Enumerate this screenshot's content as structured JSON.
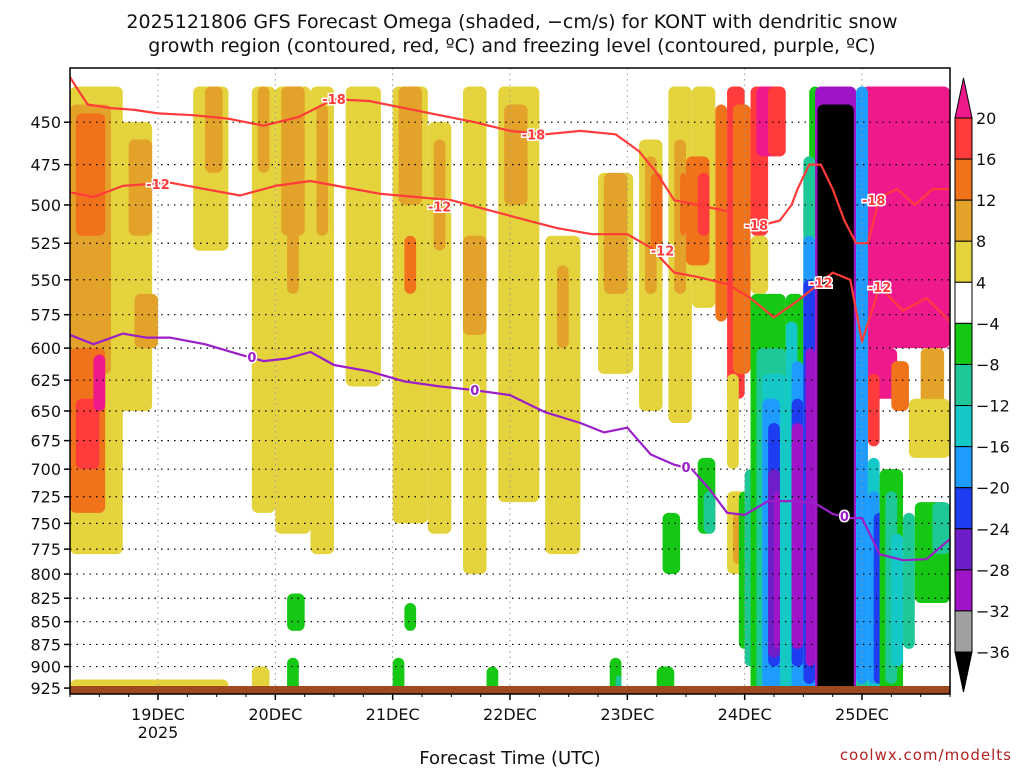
{
  "chart_data": {
    "type": "heatmap",
    "title_line1": "2025121806 GFS Forecast Omega (shaded, −cm/s) for KONT with dendritic snow",
    "title_line2": "growth region (contoured, red, ºC) and freezing level (contoured, purple, ºC)",
    "xlabel": "Forecast Time (UTC)",
    "ylabel": "",
    "credit": "coolwx.com/modelts",
    "x_ticks": [
      "19DEC",
      "20DEC",
      "21DEC",
      "22DEC",
      "23DEC",
      "24DEC",
      "25DEC"
    ],
    "x_tick_year": "2025",
    "x_range_days": [
      18.25,
      25.75
    ],
    "y_ticks": [
      450,
      475,
      500,
      525,
      550,
      575,
      600,
      625,
      650,
      675,
      700,
      725,
      750,
      775,
      800,
      825,
      850,
      875,
      900,
      925
    ],
    "y_range_hpa": [
      420,
      932
    ],
    "y_scale": "log-pressure",
    "grid": "dotted",
    "colorbar": {
      "labels": [
        "20",
        "16",
        "12",
        "8",
        "4",
        "−4",
        "−8",
        "−12",
        "−16",
        "−20",
        "−24",
        "−28",
        "−32",
        "−36"
      ],
      "bins": [
        {
          "range": ">20",
          "color": "#ee1a8c"
        },
        {
          "range": "16 to 20",
          "color": "#ff3b3b"
        },
        {
          "range": "12 to 16",
          "color": "#f0721a"
        },
        {
          "range": "8 to 12",
          "color": "#e3a229"
        },
        {
          "range": "4 to 8",
          "color": "#e4d33c"
        },
        {
          "range": "-4 to 4",
          "color": "#ffffff"
        },
        {
          "range": "-8 to -4",
          "color": "#14c814"
        },
        {
          "range": "-12 to -8",
          "color": "#1ec896"
        },
        {
          "range": "-16 to -12",
          "color": "#14c8c8"
        },
        {
          "range": "-20 to -16",
          "color": "#1e9bff"
        },
        {
          "range": "-24 to -20",
          "color": "#1e3cf0"
        },
        {
          "range": "-28 to -24",
          "color": "#6e1ec8"
        },
        {
          "range": "-32 to -28",
          "color": "#a014c8"
        },
        {
          "range": "-36 to -32",
          "color": "#a0a0a0"
        },
        {
          "range": "<-36",
          "color": "#000000"
        }
      ]
    },
    "series": [
      {
        "name": "-18",
        "color": "#ff3b3b",
        "x_days": [
          18.25,
          18.4,
          18.6,
          18.8,
          19.0,
          19.3,
          19.6,
          19.9,
          20.2,
          20.5,
          20.8,
          21.1,
          21.4,
          21.7,
          22.0,
          22.3,
          22.6,
          22.9,
          23.1,
          23.25,
          23.4,
          23.6,
          23.85
        ],
        "y_hpa": [
          425,
          440,
          442,
          443,
          445,
          446,
          448,
          452,
          447,
          437,
          438,
          442,
          446,
          450,
          455,
          457,
          455,
          457,
          467,
          480,
          497,
          500,
          504
        ],
        "labels": [
          {
            "x_days": 20.5,
            "y_hpa": 437,
            "text": "-18"
          },
          {
            "x_days": 22.2,
            "y_hpa": 457,
            "text": "-18"
          }
        ]
      },
      {
        "name": "-18 (late)",
        "color": "#ff3b3b",
        "x_days": [
          24.1,
          24.2,
          24.3,
          24.4,
          24.45,
          24.55,
          24.65,
          24.75,
          24.85,
          24.95,
          25.05,
          25.15,
          25.3,
          25.45,
          25.6,
          25.75
        ],
        "y_hpa": [
          510,
          512,
          510,
          500,
          490,
          475,
          475,
          490,
          510,
          525,
          525,
          495,
          490,
          500,
          490,
          490
        ],
        "labels": [
          {
            "x_days": 24.1,
            "y_hpa": 513,
            "text": "-18"
          },
          {
            "x_days": 25.1,
            "y_hpa": 497,
            "text": "-18"
          }
        ]
      },
      {
        "name": "-12",
        "color": "#ff3b3b",
        "x_days": [
          18.25,
          18.45,
          18.7,
          18.9,
          19.1,
          19.4,
          19.7,
          20.0,
          20.3,
          20.6,
          20.9,
          21.2,
          21.5,
          21.8,
          22.1,
          22.4,
          22.7,
          23.0,
          23.2,
          23.4,
          23.6,
          23.85,
          24.05,
          24.25,
          24.45,
          24.6,
          24.75,
          24.9,
          25.0,
          25.15,
          25.35,
          25.55,
          25.75
        ],
        "y_hpa": [
          492,
          495,
          488,
          487,
          486,
          490,
          494,
          488,
          485,
          489,
          493,
          495,
          497,
          503,
          509,
          515,
          519,
          519,
          528,
          545,
          548,
          553,
          563,
          577,
          565,
          555,
          545,
          550,
          595,
          555,
          572,
          563,
          580
        ],
        "labels": [
          {
            "x_days": 19.0,
            "y_hpa": 487,
            "text": "-12"
          },
          {
            "x_days": 21.4,
            "y_hpa": 501,
            "text": "-12"
          },
          {
            "x_days": 23.3,
            "y_hpa": 530,
            "text": "-12"
          },
          {
            "x_days": 24.65,
            "y_hpa": 552,
            "text": "-12"
          },
          {
            "x_days": 25.15,
            "y_hpa": 555,
            "text": "-12"
          }
        ]
      },
      {
        "name": "0",
        "color": "#9b1ec8",
        "x_days": [
          18.25,
          18.45,
          18.7,
          18.9,
          19.1,
          19.4,
          19.7,
          19.9,
          20.1,
          20.3,
          20.5,
          20.8,
          21.1,
          21.4,
          21.7,
          22.0,
          22.3,
          22.6,
          22.8,
          23.0,
          23.2,
          23.4,
          23.55,
          23.7,
          23.85,
          24.0,
          24.2,
          24.4,
          24.6,
          24.75,
          24.9,
          25.0,
          25.15,
          25.35,
          25.55,
          25.75
        ],
        "y_hpa": [
          590,
          597,
          589,
          592,
          592,
          597,
          605,
          610,
          608,
          603,
          613,
          618,
          626,
          630,
          633,
          637,
          651,
          660,
          668,
          664,
          687,
          696,
          700,
          718,
          740,
          742,
          729,
          729,
          731,
          741,
          745,
          745,
          780,
          786,
          785,
          765
        ],
        "labels": [
          {
            "x_days": 19.8,
            "y_hpa": 607,
            "text": "0"
          },
          {
            "x_days": 21.7,
            "y_hpa": 633,
            "text": "0"
          },
          {
            "x_days": 23.5,
            "y_hpa": 698,
            "text": "0"
          },
          {
            "x_days": 24.85,
            "y_hpa": 743,
            "text": "0"
          }
        ]
      }
    ]
  }
}
